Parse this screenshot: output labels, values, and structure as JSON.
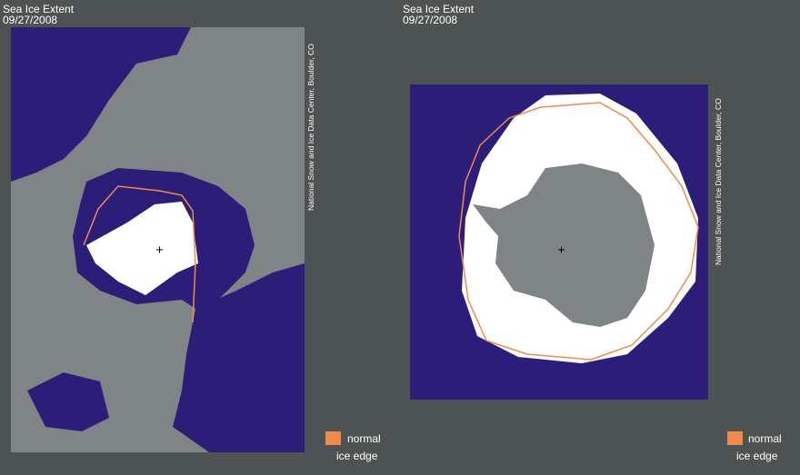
{
  "panels": [
    {
      "title": "Sea Ice Extent",
      "date": "09/27/2008",
      "credit": "National Snow and Ice Data Center, Boulder, CO",
      "legend": {
        "label": "normal",
        "sublabel": "ice edge"
      }
    },
    {
      "title": "Sea Ice Extent",
      "date": "09/27/2008",
      "credit": "National Snow and Ice Data Center, Boulder, CO",
      "legend": {
        "label": "normal",
        "sublabel": "ice edge"
      }
    }
  ]
}
